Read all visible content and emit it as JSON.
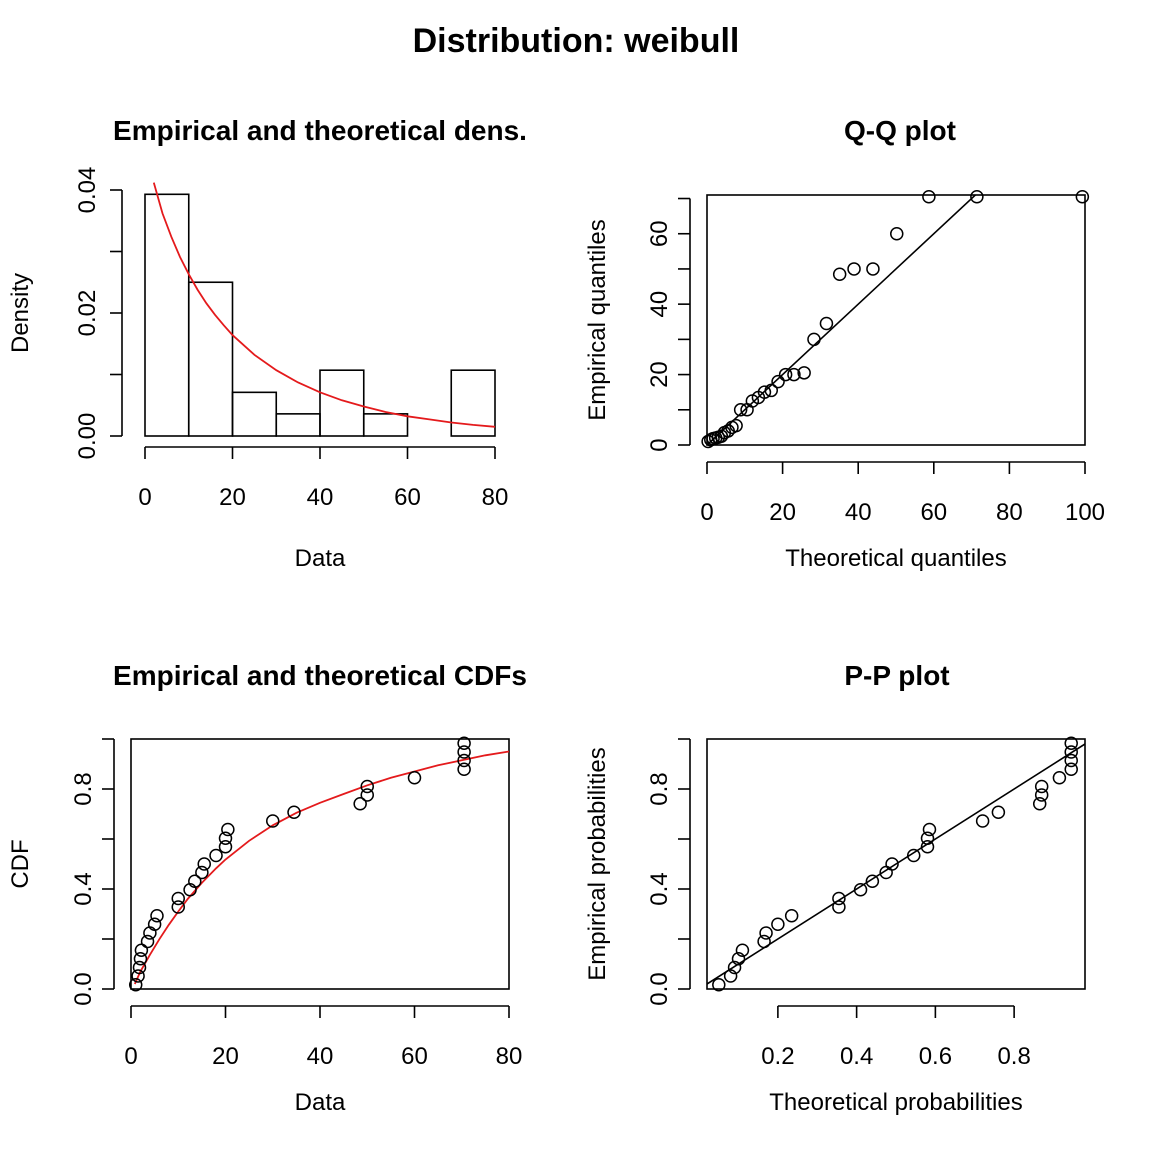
{
  "figure": {
    "title": "Distribution: weibull"
  },
  "colors": {
    "fit_curve": "#e41a1c",
    "ink": "#000000",
    "background": "#ffffff"
  },
  "chart_data": [
    {
      "id": "density",
      "type": "bar",
      "title": "Empirical and theoretical dens.",
      "xlabel": "Data",
      "ylabel": "Density",
      "xlim": [
        0,
        80
      ],
      "ylim": [
        0,
        0.04
      ],
      "x_ticks": [
        "0",
        "20",
        "40",
        "60",
        "80"
      ],
      "x_tick_values": [
        0,
        20,
        40,
        60,
        80
      ],
      "y_ticks": [
        "0.00",
        "0.02",
        "0.04"
      ],
      "y_tick_values": [
        0,
        0.02,
        0.04
      ],
      "y_minor_ticks": [
        0.01,
        0.03
      ],
      "box": false,
      "bins": [
        {
          "start": 0,
          "end": 10,
          "value": 0.0393
        },
        {
          "start": 10,
          "end": 20,
          "value": 0.025
        },
        {
          "start": 20,
          "end": 30,
          "value": 0.0071
        },
        {
          "start": 30,
          "end": 40,
          "value": 0.0036
        },
        {
          "start": 40,
          "end": 50,
          "value": 0.0107
        },
        {
          "start": 50,
          "end": 60,
          "value": 0.0036
        },
        {
          "start": 60,
          "end": 70,
          "value": 0.0
        },
        {
          "start": 70,
          "end": 80,
          "value": 0.0107
        }
      ],
      "curve": {
        "x": [
          2,
          4,
          6,
          8,
          10,
          12,
          14,
          16,
          18,
          20,
          25,
          30,
          35,
          40,
          45,
          50,
          55,
          60,
          65,
          70,
          75,
          80
        ],
        "y": [
          0.0412,
          0.0362,
          0.0324,
          0.0291,
          0.0263,
          0.0238,
          0.0216,
          0.0197,
          0.018,
          0.0164,
          0.0132,
          0.0107,
          0.0087,
          0.0071,
          0.0058,
          0.0048,
          0.0039,
          0.0032,
          0.0027,
          0.0022,
          0.0018,
          0.0015
        ]
      }
    },
    {
      "id": "qq",
      "type": "scatter",
      "title": "Q-Q plot",
      "xlabel": "Theoretical quantiles",
      "ylabel": "Empirical quantiles",
      "xlim": [
        0,
        100
      ],
      "ylim": [
        0,
        71
      ],
      "x_ticks": [
        "0",
        "20",
        "40",
        "60",
        "80",
        "100"
      ],
      "x_tick_values": [
        0,
        20,
        40,
        60,
        80,
        100
      ],
      "y_ticks": [
        "0",
        "20",
        "40",
        "60"
      ],
      "y_tick_values": [
        0,
        20,
        40,
        60
      ],
      "y_minor_ticks": [
        10,
        30,
        50,
        70
      ],
      "box": true,
      "reference_line": [
        [
          0,
          0
        ],
        [
          73,
          73
        ]
      ],
      "points": [
        [
          0.3,
          1
        ],
        [
          1.0,
          1.5
        ],
        [
          1.6,
          1.8
        ],
        [
          2.3,
          2
        ],
        [
          3.0,
          2.2
        ],
        [
          3.8,
          2.5
        ],
        [
          4.6,
          3.5
        ],
        [
          5.6,
          4
        ],
        [
          6.6,
          5
        ],
        [
          7.7,
          5.5
        ],
        [
          8.9,
          10
        ],
        [
          10.6,
          10
        ],
        [
          12.0,
          12.5
        ],
        [
          13.6,
          13.5
        ],
        [
          15.2,
          15
        ],
        [
          17.0,
          15.5
        ],
        [
          18.8,
          18
        ],
        [
          20.8,
          20
        ],
        [
          23.0,
          20
        ],
        [
          25.7,
          20.5
        ],
        [
          28.3,
          30
        ],
        [
          31.6,
          34.5
        ],
        [
          35.1,
          48.5
        ],
        [
          38.9,
          50
        ],
        [
          43.9,
          50
        ],
        [
          50.2,
          60
        ],
        [
          58.7,
          70.5
        ],
        [
          71.4,
          70.5
        ],
        [
          99.3,
          70.5
        ]
      ]
    },
    {
      "id": "cdf",
      "type": "scatter",
      "title": "Empirical and theoretical CDFs",
      "xlabel": "Data",
      "ylabel": "CDF",
      "xlim": [
        0,
        80
      ],
      "ylim": [
        0,
        1
      ],
      "x_ticks": [
        "0",
        "20",
        "40",
        "60",
        "80"
      ],
      "x_tick_values": [
        0,
        20,
        40,
        60,
        80
      ],
      "y_ticks": [
        "0.0",
        "0.4",
        "0.8"
      ],
      "y_tick_values": [
        0,
        0.4,
        0.8
      ],
      "y_minor_ticks": [
        0.2,
        0.6,
        1.0
      ],
      "box": true,
      "points": [
        [
          1,
          0.017
        ],
        [
          1.5,
          0.052
        ],
        [
          1.8,
          0.086
        ],
        [
          2,
          0.121
        ],
        [
          2.2,
          0.155
        ],
        [
          3.5,
          0.19
        ],
        [
          4,
          0.224
        ],
        [
          5,
          0.259
        ],
        [
          5.5,
          0.293
        ],
        [
          10,
          0.328
        ],
        [
          10,
          0.362
        ],
        [
          12.5,
          0.397
        ],
        [
          13.5,
          0.431
        ],
        [
          15,
          0.466
        ],
        [
          15.5,
          0.5
        ],
        [
          18,
          0.534
        ],
        [
          20,
          0.569
        ],
        [
          20,
          0.603
        ],
        [
          20.5,
          0.638
        ],
        [
          30,
          0.672
        ],
        [
          34.5,
          0.707
        ],
        [
          48.5,
          0.741
        ],
        [
          50,
          0.776
        ],
        [
          50,
          0.81
        ],
        [
          60,
          0.845
        ],
        [
          70.5,
          0.879
        ],
        [
          70.5,
          0.914
        ],
        [
          70.5,
          0.948
        ],
        [
          70.5,
          0.983
        ]
      ],
      "curve": {
        "x": [
          0.8,
          2,
          4,
          6,
          8,
          10,
          12,
          15,
          18,
          20,
          25,
          30,
          35,
          40,
          45,
          50,
          55,
          60,
          65,
          70,
          75,
          80
        ],
        "y": [
          0.02,
          0.07,
          0.137,
          0.199,
          0.257,
          0.31,
          0.36,
          0.425,
          0.483,
          0.518,
          0.593,
          0.655,
          0.705,
          0.745,
          0.78,
          0.815,
          0.845,
          0.87,
          0.895,
          0.915,
          0.935,
          0.95
        ]
      }
    },
    {
      "id": "pp",
      "type": "scatter",
      "title": "P-P plot",
      "xlabel": "Theoretical probabilities",
      "ylabel": "Empirical probabilities",
      "xlim": [
        0.02,
        0.98
      ],
      "ylim": [
        0,
        1
      ],
      "x_ticks": [
        "0.2",
        "0.4",
        "0.6",
        "0.8"
      ],
      "x_tick_values": [
        0.2,
        0.4,
        0.6,
        0.8
      ],
      "y_ticks": [
        "0.0",
        "0.4",
        "0.8"
      ],
      "y_tick_values": [
        0,
        0.4,
        0.8
      ],
      "y_minor_ticks": [
        0.2,
        0.6,
        1.0
      ],
      "box": true,
      "reference_line": [
        [
          0.0,
          0.0
        ],
        [
          1.0,
          1.0
        ]
      ],
      "points": [
        [
          0.05,
          0.017
        ],
        [
          0.08,
          0.052
        ],
        [
          0.09,
          0.086
        ],
        [
          0.1,
          0.121
        ],
        [
          0.11,
          0.155
        ],
        [
          0.165,
          0.19
        ],
        [
          0.17,
          0.224
        ],
        [
          0.2,
          0.259
        ],
        [
          0.235,
          0.293
        ],
        [
          0.355,
          0.328
        ],
        [
          0.355,
          0.362
        ],
        [
          0.41,
          0.397
        ],
        [
          0.44,
          0.431
        ],
        [
          0.475,
          0.466
        ],
        [
          0.49,
          0.5
        ],
        [
          0.545,
          0.534
        ],
        [
          0.58,
          0.569
        ],
        [
          0.58,
          0.603
        ],
        [
          0.585,
          0.638
        ],
        [
          0.72,
          0.672
        ],
        [
          0.76,
          0.707
        ],
        [
          0.865,
          0.741
        ],
        [
          0.87,
          0.776
        ],
        [
          0.87,
          0.81
        ],
        [
          0.915,
          0.845
        ],
        [
          0.945,
          0.879
        ],
        [
          0.945,
          0.914
        ],
        [
          0.945,
          0.948
        ],
        [
          0.945,
          0.983
        ]
      ]
    }
  ]
}
